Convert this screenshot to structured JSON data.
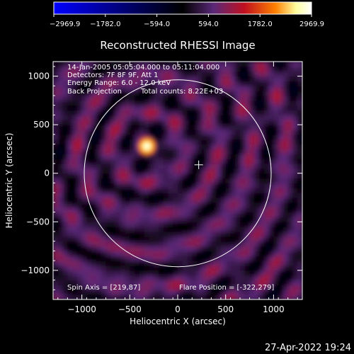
{
  "chart_data": {
    "type": "heatmap",
    "title": "Reconstructed RHESSI Image",
    "xlabel": "Heliocentric X (arcsec)",
    "ylabel": "Heliocentric Y (arcsec)",
    "xlim": [
      -1300,
      1300
    ],
    "ylim": [
      -1300,
      1150
    ],
    "xticks": [
      -1000,
      -500,
      0,
      500,
      1000
    ],
    "yticks": [
      1000,
      500,
      0,
      -500,
      -1000
    ],
    "colorbar": {
      "min": -2969.9,
      "max": 2969.9,
      "tick_values": [
        -2969.9,
        -1782.0,
        -594.0,
        594.0,
        1782.0,
        2969.9
      ],
      "tick_labels": [
        "−2969.9",
        "−1782.0",
        "−594.0",
        "594.0",
        "1782.0",
        "2969.9"
      ]
    },
    "annotations": {
      "time_range": "14-Jan-2005 05:05:04.000 to 05:11:04.000",
      "detectors": "Detectors: 7F 8F 9F, Att 1",
      "energy_range": "Energy Range: 6.0 - 12.0 keV",
      "method": "Back Projection",
      "total_counts": "Total counts: 8.22E+03",
      "spin_axis": "Spin Axis = [219,87]",
      "flare_position": "Flare Position = [-322,279]"
    },
    "solar_disk_radius_arcsec": 975,
    "spin_axis_marker": [
      219,
      87
    ],
    "source_peak": {
      "x": -322,
      "y": 279,
      "value": 2969.9
    }
  },
  "footer": {
    "date": "27-Apr-2022 19:24"
  },
  "colors": {
    "colormap": [
      "#0000ff",
      "#000000",
      "#5a2878",
      "#c01020",
      "#ff8000",
      "#ffffa0",
      "#ffffff"
    ],
    "disk_outline": "#ffffff"
  }
}
